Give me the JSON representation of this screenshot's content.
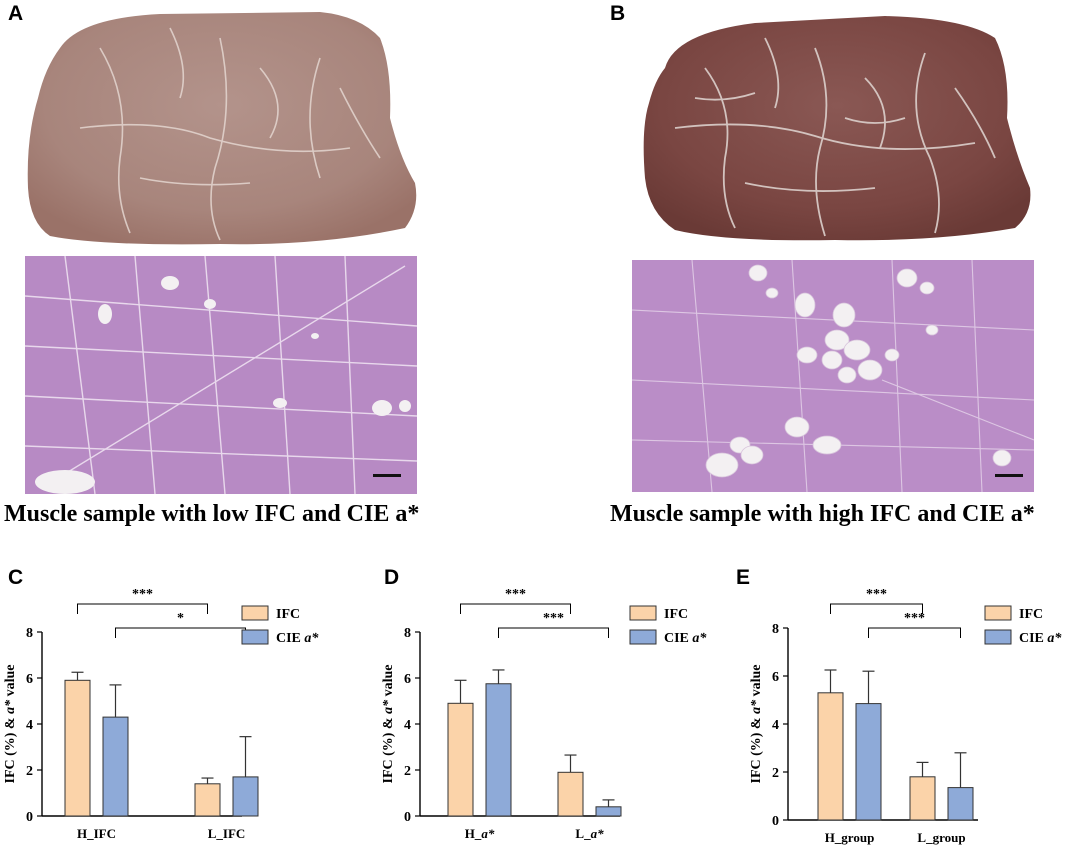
{
  "panels": {
    "a": {
      "letter": "A",
      "caption": "Muscle sample with low IFC and CIE a*"
    },
    "b": {
      "letter": "B",
      "caption": "Muscle sample with high IFC and CIE a*"
    },
    "c": {
      "letter": "C"
    },
    "d": {
      "letter": "D"
    },
    "e": {
      "letter": "E"
    }
  },
  "colors": {
    "ifc": "#fbd3a9",
    "cie": "#8eaad8",
    "edge": "#333333",
    "he_stain": "#b98ac6",
    "meat_light": "#b09088",
    "meat_dark": "#7d4a46"
  },
  "chart_data": [
    {
      "type": "bar",
      "ylabel_parts": [
        "IFC (%) & ",
        "a*",
        " value"
      ],
      "ylim": [
        0,
        8
      ],
      "yticks": [
        0,
        2,
        4,
        6,
        8
      ],
      "categories": [
        {
          "label": "H_IFC",
          "italic": false
        },
        {
          "label": "L_IFC",
          "italic": false
        }
      ],
      "legend": [
        {
          "name": "IFC",
          "italic": ""
        },
        {
          "name": "CIE ",
          "italic": "a*"
        }
      ],
      "legend_position": "top-right",
      "series": [
        {
          "values": [
            5.9,
            1.4
          ],
          "errors": [
            0.35,
            0.25
          ]
        },
        {
          "values": [
            4.3,
            1.7
          ],
          "errors": [
            1.4,
            1.75
          ]
        }
      ],
      "significance": [
        {
          "label": "***",
          "from": [
            0,
            0
          ],
          "to": [
            1,
            0
          ]
        },
        {
          "label": "*",
          "from": [
            0,
            1
          ],
          "to": [
            1,
            1
          ]
        }
      ]
    },
    {
      "type": "bar",
      "ylabel_parts": [
        "IFC (%) & ",
        "a*",
        " value"
      ],
      "ylim": [
        0,
        8
      ],
      "yticks": [
        0,
        2,
        4,
        6,
        8
      ],
      "categories": [
        {
          "label": "H_",
          "italic": "a*"
        },
        {
          "label": "L_",
          "italic": "a*"
        }
      ],
      "legend": [
        {
          "name": "IFC",
          "italic": ""
        },
        {
          "name": "CIE ",
          "italic": "a*"
        }
      ],
      "legend_position": "top-right",
      "series": [
        {
          "values": [
            4.9,
            1.9
          ],
          "errors": [
            1.0,
            0.75
          ]
        },
        {
          "values": [
            5.75,
            0.4
          ],
          "errors": [
            0.6,
            0.3
          ]
        }
      ],
      "significance": [
        {
          "label": "***",
          "from": [
            0,
            0
          ],
          "to": [
            1,
            0
          ]
        },
        {
          "label": "***",
          "from": [
            0,
            1
          ],
          "to": [
            1,
            1
          ]
        }
      ]
    },
    {
      "type": "bar",
      "ylabel_parts": [
        "IFC (%) & ",
        "a*",
        " value"
      ],
      "ylim": [
        0,
        8
      ],
      "yticks": [
        0,
        2,
        4,
        6,
        8
      ],
      "categories": [
        {
          "label": "H_group",
          "italic": false
        },
        {
          "label": "L_group",
          "italic": false
        }
      ],
      "legend": [
        {
          "name": "IFC",
          "italic": ""
        },
        {
          "name": "CIE ",
          "italic": "a*"
        }
      ],
      "legend_position": "top-right",
      "series": [
        {
          "values": [
            5.3,
            1.8
          ],
          "errors": [
            0.95,
            0.6
          ]
        },
        {
          "values": [
            4.85,
            1.35
          ],
          "errors": [
            1.35,
            1.45
          ]
        }
      ],
      "significance": [
        {
          "label": "***",
          "from": [
            0,
            0
          ],
          "to": [
            1,
            0
          ]
        },
        {
          "label": "***",
          "from": [
            0,
            1
          ],
          "to": [
            1,
            1
          ]
        }
      ]
    }
  ]
}
